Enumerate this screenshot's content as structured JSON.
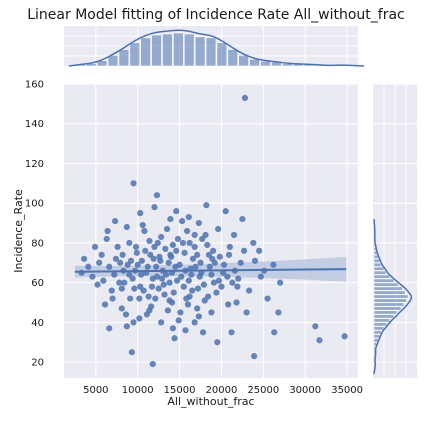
{
  "chart_data": {
    "type": "scatter",
    "title": "Linear Model fitting of Incidence Rate All_without_frac",
    "xlabel": "All_without_frac",
    "ylabel": "Incidence_Rate",
    "xlim": [
      1200,
      36300
    ],
    "ylim": [
      12,
      160
    ],
    "x_ticks": [
      5000,
      10000,
      15000,
      20000,
      25000,
      30000,
      35000
    ],
    "y_ticks": [
      20,
      40,
      60,
      80,
      100,
      120,
      140,
      160
    ],
    "grid": true,
    "regression": {
      "x": [
        2500,
        34900
      ],
      "y": [
        65.5,
        66.8
      ],
      "ci_end_upper": 73,
      "ci_end_lower": 60.5
    },
    "marginal_x": {
      "bin_edges_start": 2500,
      "bin_width": 1300,
      "counts": [
        3,
        5,
        11,
        22,
        34,
        48,
        58,
        64,
        66,
        68,
        66,
        60,
        58,
        48,
        34,
        22,
        14,
        10,
        8,
        5,
        4,
        3,
        2,
        1,
        2,
        1
      ]
    },
    "marginal_y": {
      "bin_edges_start": 18,
      "bin_width": 2,
      "counts": [
        2,
        1,
        2,
        2,
        2,
        4,
        6,
        8,
        10,
        14,
        18,
        22,
        28,
        32,
        38,
        42,
        46,
        48,
        44,
        40,
        34,
        28,
        22,
        17,
        14,
        10,
        8,
        6,
        4,
        3,
        2,
        1,
        1,
        1,
        1
      ]
    },
    "colors": {
      "points": "#4c72b0",
      "background": "#eaeaf2",
      "grid": "#ffffff",
      "ci_band": "#b8c4de"
    },
    "points": [
      [
        22800,
        153
      ],
      [
        9500,
        110
      ],
      [
        12300,
        104
      ],
      [
        20500,
        96
      ],
      [
        22500,
        92
      ],
      [
        8700,
        88
      ],
      [
        31200,
        38
      ],
      [
        31700,
        31
      ],
      [
        34700,
        33
      ],
      [
        23900,
        23
      ],
      [
        9300,
        25
      ],
      [
        11800,
        19
      ],
      [
        26300,
        35
      ],
      [
        26800,
        45
      ],
      [
        25500,
        52
      ],
      [
        24700,
        63
      ],
      [
        26200,
        69
      ],
      [
        27000,
        60
      ],
      [
        24500,
        76
      ],
      [
        25100,
        66
      ],
      [
        4600,
        63
      ],
      [
        3600,
        72
      ],
      [
        6100,
        49
      ],
      [
        6600,
        37
      ],
      [
        19500,
        30
      ],
      [
        17800,
        35
      ],
      [
        15700,
        36
      ],
      [
        14400,
        32
      ],
      [
        21200,
        35
      ],
      [
        8700,
        38
      ],
      [
        3300,
        65
      ],
      [
        4100,
        68
      ],
      [
        5200,
        59
      ],
      [
        5700,
        74
      ],
      [
        6300,
        82
      ],
      [
        7300,
        91
      ],
      [
        10600,
        89
      ],
      [
        13900,
        92
      ],
      [
        15300,
        91
      ],
      [
        17300,
        90
      ],
      [
        19600,
        87
      ],
      [
        21000,
        78
      ],
      [
        22300,
        70
      ],
      [
        23300,
        56
      ],
      [
        20800,
        49
      ],
      [
        18800,
        45
      ],
      [
        17300,
        43
      ],
      [
        15100,
        45
      ],
      [
        11100,
        44
      ],
      [
        9100,
        52
      ],
      [
        8400,
        60
      ],
      [
        7900,
        70
      ],
      [
        9000,
        80
      ],
      [
        10800,
        86
      ],
      [
        12800,
        83
      ],
      [
        14800,
        82
      ],
      [
        16800,
        84
      ],
      [
        18300,
        79
      ],
      [
        19800,
        73
      ],
      [
        20700,
        63
      ],
      [
        19400,
        55
      ],
      [
        18000,
        51
      ],
      [
        16200,
        53
      ],
      [
        14100,
        50
      ],
      [
        12100,
        52
      ],
      [
        10300,
        58
      ],
      [
        9700,
        66
      ],
      [
        11500,
        74
      ],
      [
        13300,
        77
      ],
      [
        15600,
        75
      ],
      [
        17500,
        70
      ],
      [
        18800,
        64
      ],
      [
        17900,
        59
      ],
      [
        16100,
        61
      ],
      [
        13800,
        60
      ],
      [
        12300,
        63
      ],
      [
        11200,
        68
      ],
      [
        12700,
        71
      ],
      [
        14500,
        68
      ],
      [
        16300,
        67
      ],
      [
        14000,
        73
      ],
      [
        13000,
        66
      ],
      [
        15200,
        63
      ],
      [
        16800,
        78
      ],
      [
        8200,
        74
      ],
      [
        7200,
        64
      ],
      [
        6900,
        56
      ],
      [
        8100,
        47
      ],
      [
        10200,
        42
      ],
      [
        12800,
        40
      ],
      [
        14900,
        41
      ],
      [
        17100,
        47
      ],
      [
        20000,
        58
      ],
      [
        21600,
        66
      ],
      [
        21900,
        58
      ],
      [
        20300,
        69
      ],
      [
        19000,
        76
      ],
      [
        17700,
        82
      ],
      [
        15900,
        86
      ],
      [
        13500,
        87
      ],
      [
        11400,
        81
      ],
      [
        9900,
        75
      ],
      [
        8800,
        69
      ],
      [
        9400,
        62
      ],
      [
        10700,
        56
      ],
      [
        12500,
        57
      ],
      [
        14300,
        55
      ],
      [
        16500,
        56
      ],
      [
        18600,
        68
      ],
      [
        16600,
        72
      ],
      [
        14600,
        76
      ],
      [
        12000,
        78
      ],
      [
        10500,
        71
      ],
      [
        11800,
        62
      ],
      [
        13200,
        54
      ],
      [
        15500,
        58
      ],
      [
        17400,
        63
      ],
      [
        19200,
        70
      ],
      [
        20900,
        74
      ],
      [
        18100,
        84
      ],
      [
        15400,
        80
      ],
      [
        13700,
        70
      ],
      [
        12600,
        73
      ],
      [
        11000,
        65
      ],
      [
        10000,
        69
      ],
      [
        9200,
        71
      ],
      [
        7600,
        78
      ],
      [
        6600,
        68
      ],
      [
        5900,
        61
      ],
      [
        7000,
        52
      ],
      [
        8600,
        44
      ],
      [
        11600,
        48
      ],
      [
        13600,
        46
      ],
      [
        16000,
        49
      ],
      [
        18400,
        53
      ],
      [
        19700,
        61
      ],
      [
        21300,
        60
      ],
      [
        22000,
        62
      ],
      [
        7800,
        60
      ],
      [
        9600,
        57
      ],
      [
        11300,
        53
      ],
      [
        13100,
        59
      ],
      [
        14700,
        61
      ],
      [
        16400,
        64
      ],
      [
        17100,
        74
      ],
      [
        15000,
        69
      ],
      [
        13400,
        64
      ],
      [
        12200,
        68
      ],
      [
        10400,
        64
      ],
      [
        8300,
        66
      ],
      [
        9800,
        78
      ],
      [
        12400,
        80
      ],
      [
        14200,
        79
      ],
      [
        16200,
        80
      ],
      [
        18500,
        74
      ],
      [
        20200,
        65
      ],
      [
        19100,
        60
      ],
      [
        17200,
        57
      ],
      [
        15700,
        66
      ],
      [
        14100,
        65
      ],
      [
        12900,
        62
      ],
      [
        11700,
        58
      ],
      [
        10200,
        52
      ],
      [
        13800,
        51
      ],
      [
        15800,
        52
      ],
      [
        17600,
        65
      ],
      [
        18900,
        72
      ],
      [
        16900,
        68
      ],
      [
        13900,
        74
      ],
      [
        11900,
        72
      ],
      [
        10900,
        76
      ],
      [
        9000,
        64
      ],
      [
        8100,
        57
      ],
      [
        7400,
        72
      ],
      [
        22700,
        76
      ],
      [
        23800,
        80
      ],
      [
        21500,
        84
      ],
      [
        24000,
        71
      ],
      [
        21800,
        50
      ],
      [
        23000,
        45
      ],
      [
        5400,
        70
      ],
      [
        4900,
        78
      ],
      [
        6400,
        86
      ],
      [
        10300,
        95
      ],
      [
        12000,
        98
      ],
      [
        14600,
        96
      ],
      [
        16100,
        93
      ],
      [
        18200,
        99
      ],
      [
        11400,
        46
      ],
      [
        9500,
        40
      ],
      [
        14200,
        37
      ],
      [
        16800,
        40
      ]
    ]
  }
}
